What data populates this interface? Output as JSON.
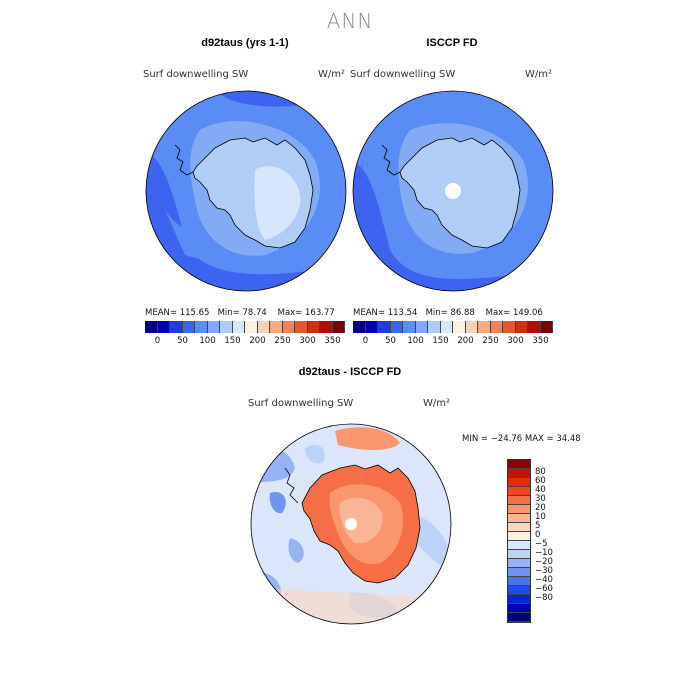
{
  "page_title": "ANN",
  "panels": [
    {
      "title": "d92taus (yrs 1-1)",
      "variable": "Surf downwelling SW",
      "units": "W/m²",
      "stats": {
        "mean": "MEAN= 115.65",
        "min": "Min=  78.74",
        "max": "Max= 163.77"
      }
    },
    {
      "title": "ISCCP FD",
      "variable": "Surf downwelling SW",
      "units": "W/m²",
      "stats": {
        "mean": "MEAN= 113.54",
        "min": "Min=  86.88",
        "max": "Max= 149.06"
      }
    },
    {
      "title": "d92taus - ISCCP FD",
      "variable": "Surf downwelling SW",
      "units": "W/m²",
      "stats": {
        "minmax": "MIN = −24.76 MAX =  34.48"
      }
    }
  ],
  "colorbar_abs": {
    "colors": [
      "#000080",
      "#0000b4",
      "#1e3ce6",
      "#3c64f0",
      "#5a8cf5",
      "#82aaf5",
      "#afcdf5",
      "#d7e6fa",
      "#fff0e6",
      "#fad2b4",
      "#f5aa82",
      "#f0825a",
      "#e6552d",
      "#d22d0f",
      "#b40a00",
      "#7d0000"
    ],
    "labels": [
      "0",
      "50",
      "100",
      "150",
      "200",
      "250",
      "300",
      "350"
    ]
  },
  "colorbar_diff": {
    "colors": [
      "#8b0000",
      "#c31400",
      "#e62d00",
      "#f0461e",
      "#f56e46",
      "#fa966e",
      "#fab496",
      "#fcd7be",
      "#fff0e6",
      "#dce6fa",
      "#bcd2f8",
      "#96b4f5",
      "#6e96f0",
      "#4673eb",
      "#1e4be6",
      "#0028d2",
      "#0000b4",
      "#000080"
    ],
    "labels": [
      "80",
      "60",
      "40",
      "30",
      "20",
      "10",
      "5",
      "0",
      "−5",
      "−10",
      "−20",
      "−30",
      "−40",
      "−60",
      "−80"
    ]
  },
  "chart_data": [
    {
      "type": "heatmap",
      "title": "d92taus (yrs 1-1)",
      "variable": "Surf downwelling SW",
      "units": "W/m²",
      "projection": "south polar stereographic",
      "mean": 115.65,
      "min": 78.74,
      "max": 163.77,
      "colorbar_levels": [
        0,
        50,
        100,
        150,
        200,
        250,
        300,
        350
      ]
    },
    {
      "type": "heatmap",
      "title": "ISCCP FD",
      "variable": "Surf downwelling SW",
      "units": "W/m²",
      "projection": "south polar stereographic",
      "mean": 113.54,
      "min": 86.88,
      "max": 149.06,
      "colorbar_levels": [
        0,
        50,
        100,
        150,
        200,
        250,
        300,
        350
      ]
    },
    {
      "type": "heatmap",
      "title": "d92taus - ISCCP FD",
      "variable": "Surf downwelling SW",
      "units": "W/m²",
      "projection": "south polar stereographic",
      "min": -24.76,
      "max": 34.48,
      "colorbar_levels": [
        -80,
        -60,
        -40,
        -30,
        -20,
        -10,
        -5,
        0,
        5,
        10,
        20,
        30,
        40,
        60,
        80
      ]
    }
  ]
}
